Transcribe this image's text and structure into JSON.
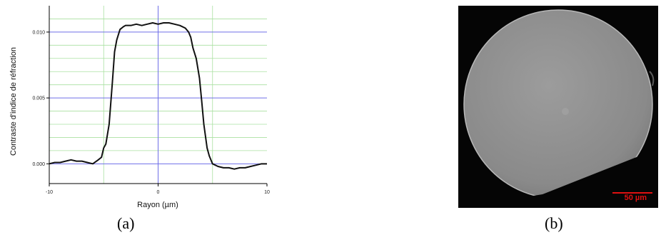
{
  "chart_data": {
    "type": "line",
    "xlabel": "Rayon (µm)",
    "ylabel": "Contraste d'indice de réfraction",
    "xlim": [
      -10,
      10
    ],
    "ylim": [
      -0.0015,
      0.012
    ],
    "x_ticks": [
      "-10",
      "0",
      "10"
    ],
    "y_ticks": [
      "0.000",
      "0.005",
      "0.010"
    ],
    "grid": true,
    "series": [
      {
        "x": [
          -10,
          -9.5,
          -9,
          -8.5,
          -8,
          -7.5,
          -7,
          -6.5,
          -6,
          -5.5,
          -5.2,
          -5,
          -4.8,
          -4.5,
          -4.2,
          -4,
          -3.8,
          -3.5,
          -3.2,
          -3,
          -2.5,
          -2,
          -1.5,
          -1,
          -0.5,
          0,
          0.5,
          1,
          1.5,
          2,
          2.5,
          2.8,
          3,
          3.2,
          3.5,
          3.8,
          4,
          4.2,
          4.5,
          4.7,
          5,
          5.5,
          6,
          6.5,
          7,
          7.5,
          8,
          8.5,
          9,
          9.5,
          10
        ],
        "y": [
          0.0,
          0.0001,
          0.0001,
          0.0002,
          0.0003,
          0.0002,
          0.0002,
          0.0001,
          0.0,
          0.0003,
          0.0005,
          0.0012,
          0.0015,
          0.003,
          0.0062,
          0.0085,
          0.0094,
          0.0102,
          0.0104,
          0.0105,
          0.0105,
          0.0106,
          0.0105,
          0.0106,
          0.0107,
          0.0106,
          0.0107,
          0.0107,
          0.0106,
          0.0105,
          0.0103,
          0.01,
          0.0096,
          0.0088,
          0.008,
          0.0065,
          0.0048,
          0.003,
          0.0012,
          0.0006,
          0.0,
          -0.0002,
          -0.0003,
          -0.0003,
          -0.0004,
          -0.0003,
          -0.0003,
          -0.0002,
          -0.0001,
          0.0,
          0.0
        ]
      }
    ]
  },
  "captions": {
    "a": "(a)",
    "b": "(b)"
  },
  "photo": {
    "scale_bar_label": "50 µm",
    "scale_bar_color": "#e01010"
  },
  "colors": {
    "major_grid": "#6f6fe8",
    "minor_grid": "#a9e0a0",
    "line": "#111111"
  }
}
